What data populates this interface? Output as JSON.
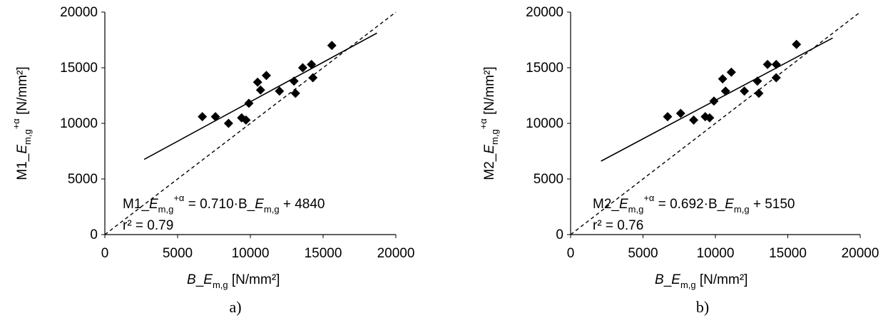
{
  "chart_data": [
    {
      "type": "scatter",
      "panel_label": "a)",
      "xlim": [
        0,
        20000
      ],
      "ylim": [
        0,
        20000
      ],
      "xticks": [
        "0",
        "5000",
        "10000",
        "15000",
        "20000"
      ],
      "yticks": [
        "0",
        "5000",
        "10000",
        "15000",
        "20000"
      ],
      "xlabel": {
        "prefix": "B_E",
        "sub": "m,g",
        "suffix": " [N/mm²]"
      },
      "ylabel": {
        "prefix": "M1_E",
        "sub": "m,g",
        "sup": "+α",
        "suffix": " [N/mm²]"
      },
      "equation": {
        "lhs": "M1_E",
        "lhs_sub": "m,g",
        "lhs_sup": "+α",
        "rhs_a": " = 0.710·B_E",
        "rhs_sub": "m,g",
        "rhs_b": "  + 4840"
      },
      "r2": "r² = 0.79",
      "points": [
        {
          "x": 6700,
          "y": 10600
        },
        {
          "x": 7600,
          "y": 10600
        },
        {
          "x": 8500,
          "y": 10000
        },
        {
          "x": 9400,
          "y": 10500
        },
        {
          "x": 9700,
          "y": 10300
        },
        {
          "x": 9900,
          "y": 11800
        },
        {
          "x": 10500,
          "y": 13700
        },
        {
          "x": 10700,
          "y": 13000
        },
        {
          "x": 11100,
          "y": 14300
        },
        {
          "x": 12000,
          "y": 12900
        },
        {
          "x": 13000,
          "y": 13800
        },
        {
          "x": 13100,
          "y": 12700
        },
        {
          "x": 13600,
          "y": 15000
        },
        {
          "x": 14200,
          "y": 15300
        },
        {
          "x": 14300,
          "y": 14100
        },
        {
          "x": 15600,
          "y": 17000
        }
      ],
      "fit": {
        "x": [
          2700,
          18700
        ],
        "y": [
          6757,
          18117
        ]
      },
      "identity": {
        "x": [
          0,
          20000
        ],
        "y": [
          0,
          20000
        ]
      }
    },
    {
      "type": "scatter",
      "panel_label": "b)",
      "xlim": [
        0,
        20000
      ],
      "ylim": [
        0,
        20000
      ],
      "xticks": [
        "0",
        "5000",
        "10000",
        "15000",
        "20000"
      ],
      "yticks": [
        "0",
        "5000",
        "10000",
        "15000",
        "20000"
      ],
      "xlabel": {
        "prefix": "B_E",
        "sub": "m,g",
        "suffix": " [N/mm²]"
      },
      "ylabel": {
        "prefix": "M2_E",
        "sub": "m,g",
        "sup": "+α",
        "suffix": " [N/mm²]"
      },
      "equation": {
        "lhs": "M2_E",
        "lhs_sub": "m,g",
        "lhs_sup": "+α",
        "rhs_a": " = 0.692·B_E",
        "rhs_sub": "m,g",
        "rhs_b": "  + 5150"
      },
      "r2": "r² = 0.76",
      "points": [
        {
          "x": 6700,
          "y": 10600
        },
        {
          "x": 7600,
          "y": 10900
        },
        {
          "x": 8500,
          "y": 10300
        },
        {
          "x": 9300,
          "y": 10600
        },
        {
          "x": 9600,
          "y": 10500
        },
        {
          "x": 9900,
          "y": 12000
        },
        {
          "x": 10500,
          "y": 14000
        },
        {
          "x": 10700,
          "y": 12900
        },
        {
          "x": 11100,
          "y": 14600
        },
        {
          "x": 12000,
          "y": 12900
        },
        {
          "x": 12900,
          "y": 13800
        },
        {
          "x": 13000,
          "y": 12700
        },
        {
          "x": 13600,
          "y": 15300
        },
        {
          "x": 14200,
          "y": 15300
        },
        {
          "x": 14200,
          "y": 14100
        },
        {
          "x": 15600,
          "y": 17100
        }
      ],
      "fit": {
        "x": [
          2100,
          18100
        ],
        "y": [
          6603,
          17675
        ]
      },
      "identity": {
        "x": [
          0,
          20000
        ],
        "y": [
          0,
          20000
        ]
      }
    }
  ]
}
